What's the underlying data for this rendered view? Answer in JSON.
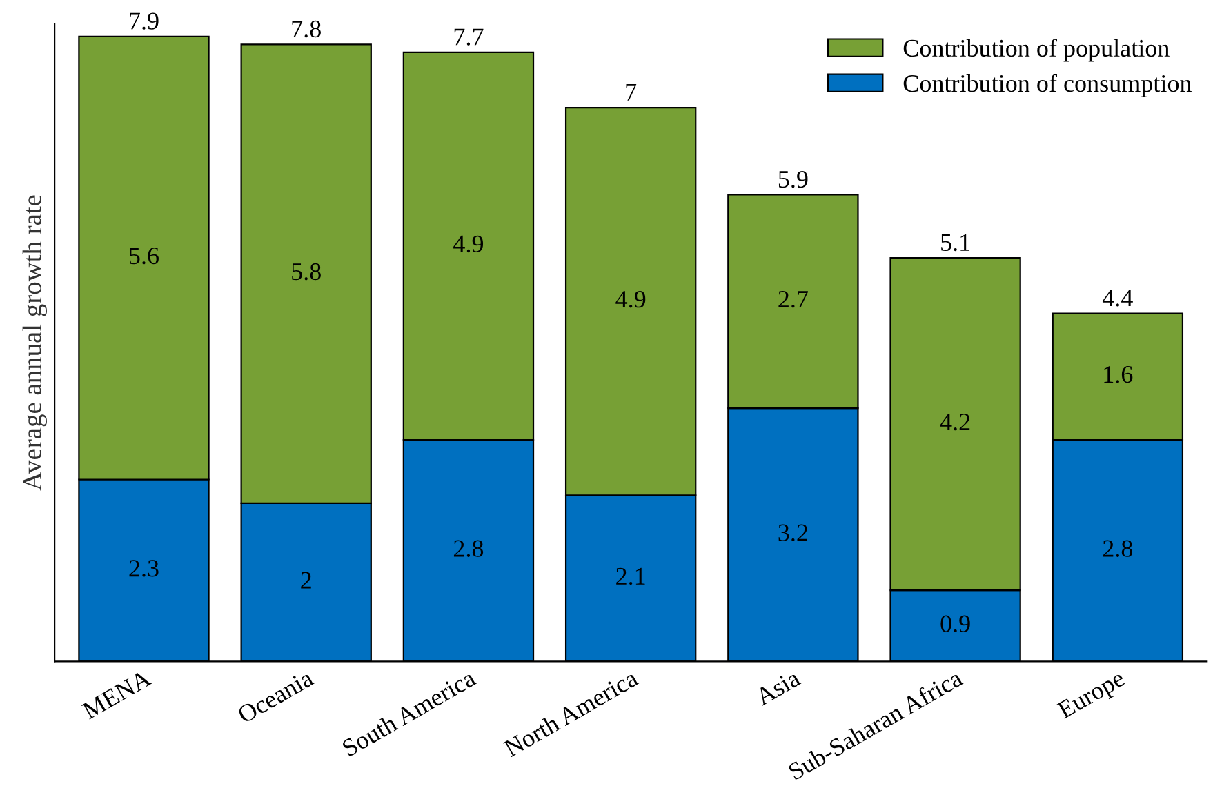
{
  "chart_data": {
    "type": "bar",
    "stacked": true,
    "ylabel": "Average annual growth rate",
    "categories": [
      "MENA",
      "Oceania",
      "South America",
      "North America",
      "Asia",
      "Sub-Saharan Africa",
      "Europe"
    ],
    "series": [
      {
        "name": "Contribution of consumption",
        "color": "#0070c0",
        "values": [
          2.3,
          2,
          2.8,
          2.1,
          3.2,
          0.9,
          2.8
        ]
      },
      {
        "name": "Contribution of population",
        "color": "#77a035",
        "values": [
          5.6,
          5.8,
          4.9,
          4.9,
          2.7,
          4.2,
          1.6
        ]
      }
    ],
    "totals": [
      "7.9",
      "7.8",
      "7.7",
      "7",
      "5.9",
      "5.1",
      "4.4"
    ],
    "data_labels": true,
    "legend": "top right",
    "grid": false,
    "tick_labels": "x"
  }
}
